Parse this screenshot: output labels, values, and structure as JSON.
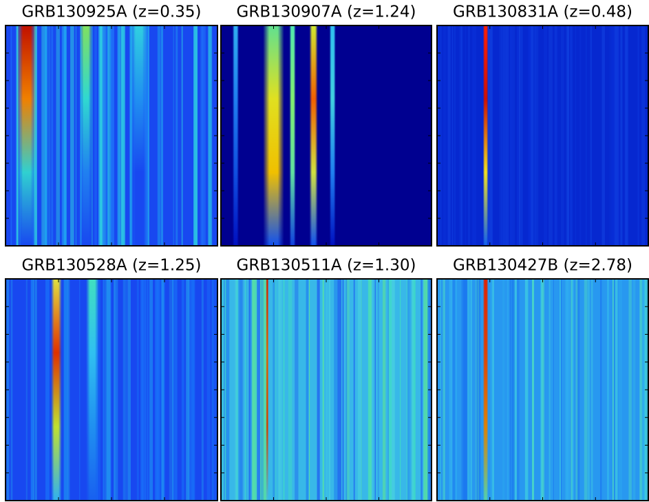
{
  "chart_data": [
    {
      "type": "heatmap",
      "title": "GRB130925A (z=0.35)"
    },
    {
      "type": "heatmap",
      "title": "GRB130907A (z=1.24)"
    },
    {
      "type": "heatmap",
      "title": "GRB130831A (z=0.48)"
    },
    {
      "type": "heatmap",
      "title": "GRB130528A (z=1.25)"
    },
    {
      "type": "heatmap",
      "title": "GRB130511A (z=1.30)"
    },
    {
      "type": "heatmap",
      "title": "GRB130427B (z=2.78)"
    }
  ]
}
